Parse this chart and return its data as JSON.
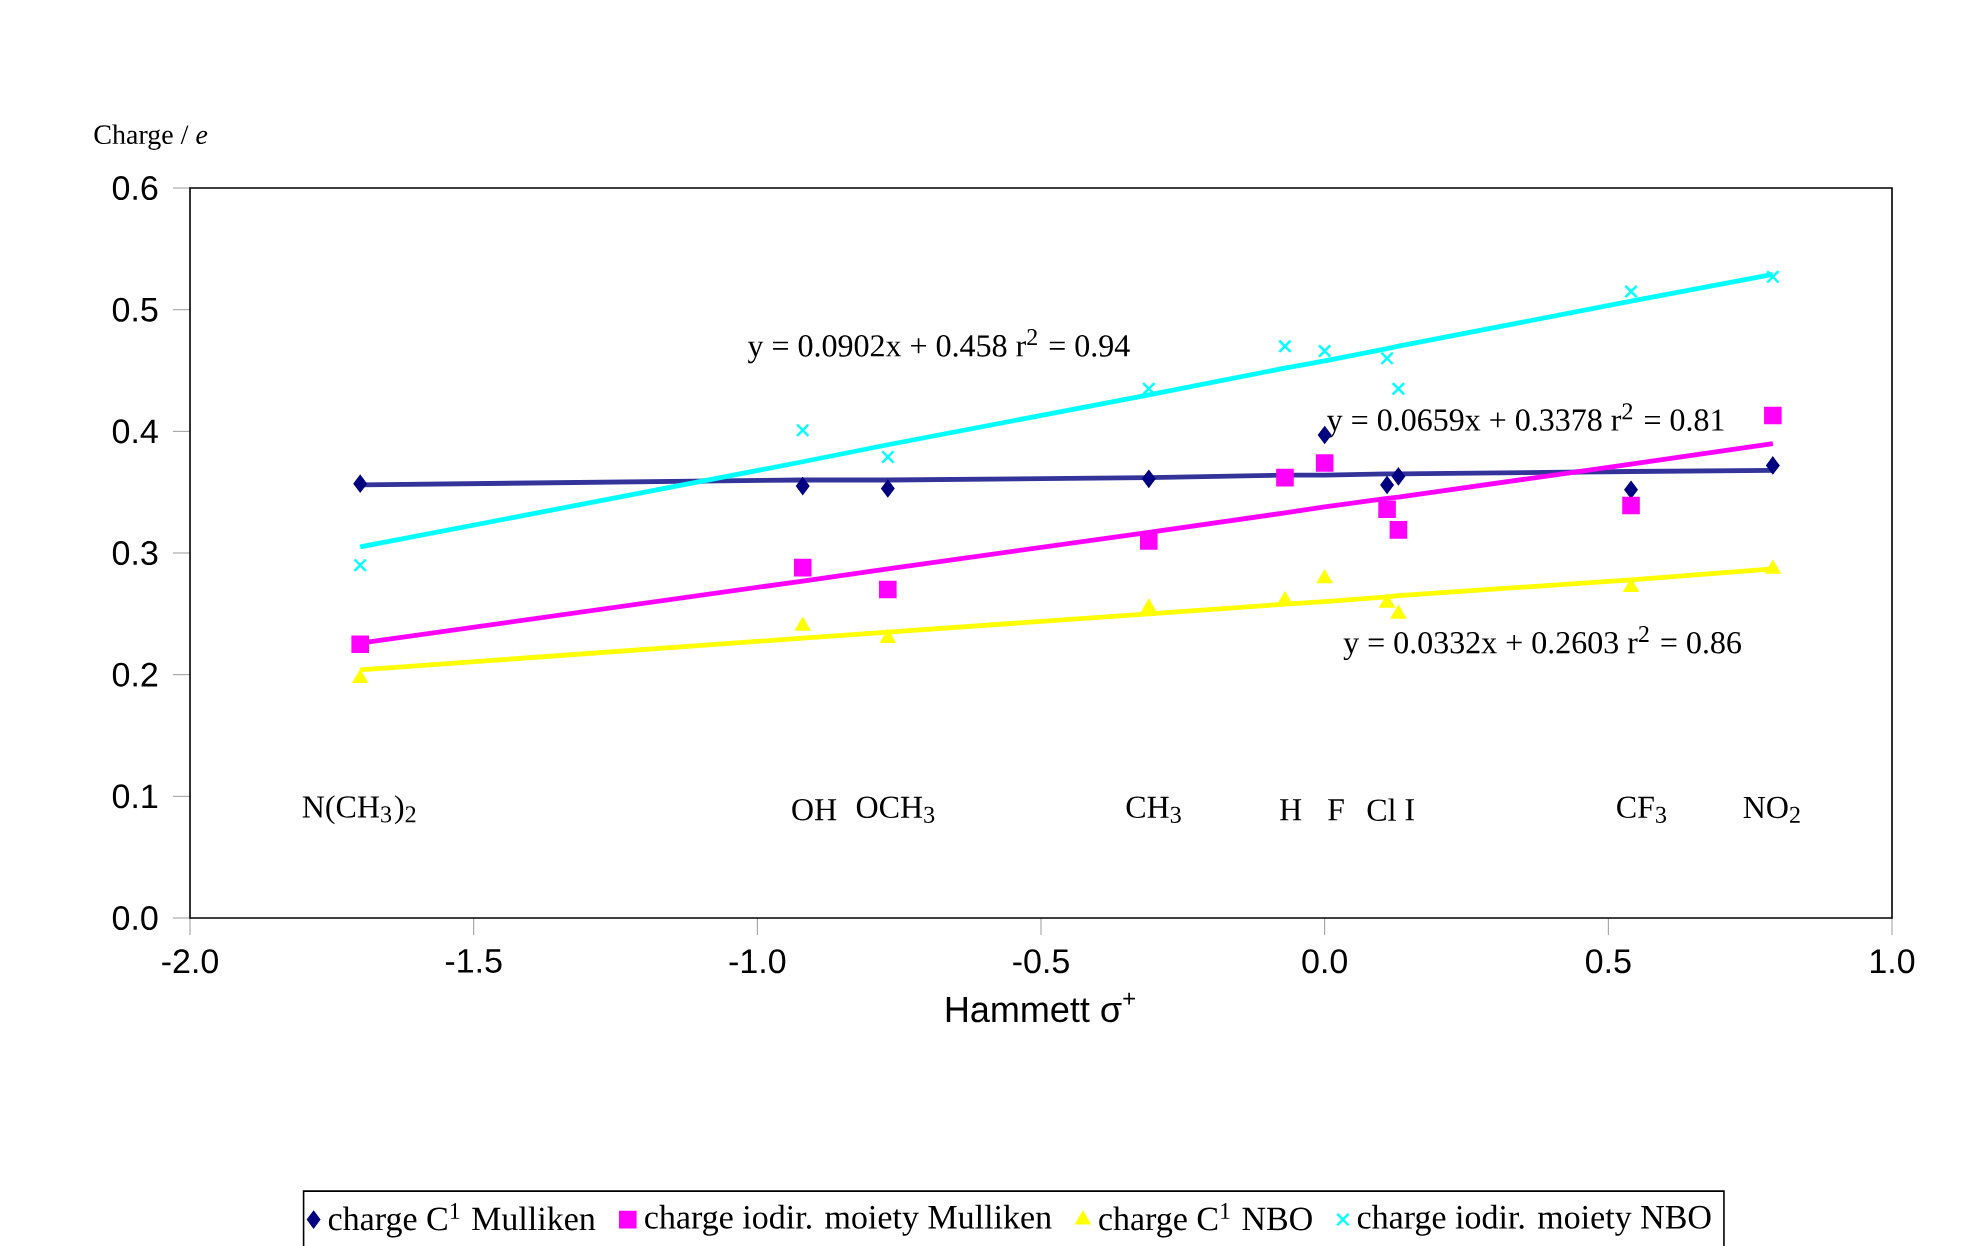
{
  "chart_data": {
    "type": "scatter",
    "xlabel": "Hammett σ$^{+}$",
    "ylabel": "Charge / *e*",
    "xlim": [
      -2,
      1
    ],
    "ylim": [
      0,
      0.6
    ],
    "xticks": [
      {
        "value": -2,
        "label": "-2.0"
      },
      {
        "value": -1.5,
        "label": "-1.5"
      },
      {
        "value": -1,
        "label": "-1.0"
      },
      {
        "value": -0.5,
        "label": "-0.5"
      },
      {
        "value": 0,
        "label": "0.0"
      },
      {
        "value": 0.5,
        "label": "0.5"
      },
      {
        "value": 1,
        "label": "1.0"
      }
    ],
    "yticks": [
      {
        "value": 0,
        "label": "0.0"
      },
      {
        "value": 0.1,
        "label": "0.1"
      },
      {
        "value": 0.2,
        "label": "0.2"
      },
      {
        "value": 0.3,
        "label": "0.3"
      },
      {
        "value": 0.4,
        "label": "0.4"
      },
      {
        "value": 0.5,
        "label": "0.5"
      },
      {
        "value": 0.6,
        "label": "0.6"
      }
    ],
    "x": [
      -1.7,
      -0.92,
      -0.77,
      -0.31,
      -0.07,
      0,
      0.11,
      0.13,
      0.54,
      0.79
    ],
    "legend": "bottom",
    "series": [
      {
        "name": "charge C$^{1}$ Mulliken",
        "color": "#000080",
        "marker": "diamond",
        "values": [
          0.357,
          0.355,
          0.353,
          0.361,
          null,
          0.397,
          0.356,
          0.363,
          0.352,
          0.372
        ]
      },
      {
        "name": "charge iodir. moiety Mulliken",
        "color": "#ff00ff",
        "marker": "square",
        "values": [
          0.225,
          0.288,
          0.27,
          0.31,
          0.362,
          0.374,
          0.336,
          0.319,
          0.339,
          0.413
        ]
      },
      {
        "name": "charge C$^{1}$ NBO",
        "color": "#ffff00",
        "marker": "triangle",
        "values": [
          0.197,
          0.24,
          0.23,
          0.255,
          0.261,
          0.279,
          0.259,
          0.25,
          0.272,
          0.287
        ]
      },
      {
        "name": "charge iodir. moiety NBO",
        "color": "#00ffff",
        "marker": "cross",
        "values": [
          0.29,
          0.401,
          0.379,
          0.435,
          0.47,
          0.466,
          0.46,
          0.435,
          0.515,
          0.527
        ]
      },
      {
        "type": "line",
        "color": "#333399",
        "line_style": "solid",
        "values": [
          0.356,
          0.36,
          0.36,
          0.362,
          0.364,
          0.364,
          0.365,
          0.365,
          0.367,
          0.368
        ]
      },
      {
        "type": "line",
        "color": "#ff00ff",
        "line_style": "solid",
        "values": [
          0.226,
          0.277,
          0.287,
          0.317,
          0.333,
          0.338,
          0.345,
          0.346,
          0.373,
          0.39
        ]
      },
      {
        "type": "line",
        "color": "#ffff00",
        "line_style": "solid",
        "values": [
          0.204,
          0.23,
          0.235,
          0.25,
          0.258,
          0.26,
          0.264,
          0.265,
          0.278,
          0.287
        ]
      },
      {
        "type": "line",
        "color": "#00ffff",
        "line_style": "solid",
        "values": [
          0.305,
          0.375,
          0.389,
          0.43,
          0.452,
          0.458,
          0.468,
          0.47,
          0.507,
          0.529
        ]
      }
    ],
    "annotations": [
      "y = 0.0902x + 0.458   r$^{2}$ = 0.94",
      "y = 0.0659x + 0.3378  r$^{2}$ = 0.81",
      "y = 0.0332x + 0.2603  r$^{2}$ = 0.86",
      "N(CH$_{3}$)$_{2}$",
      "OH",
      "OCH$_{3}$",
      "CH$_{3}$",
      "H",
      "F",
      "Cl",
      "I",
      "CF$_{3}$",
      "NO$_{2}$"
    ]
  }
}
